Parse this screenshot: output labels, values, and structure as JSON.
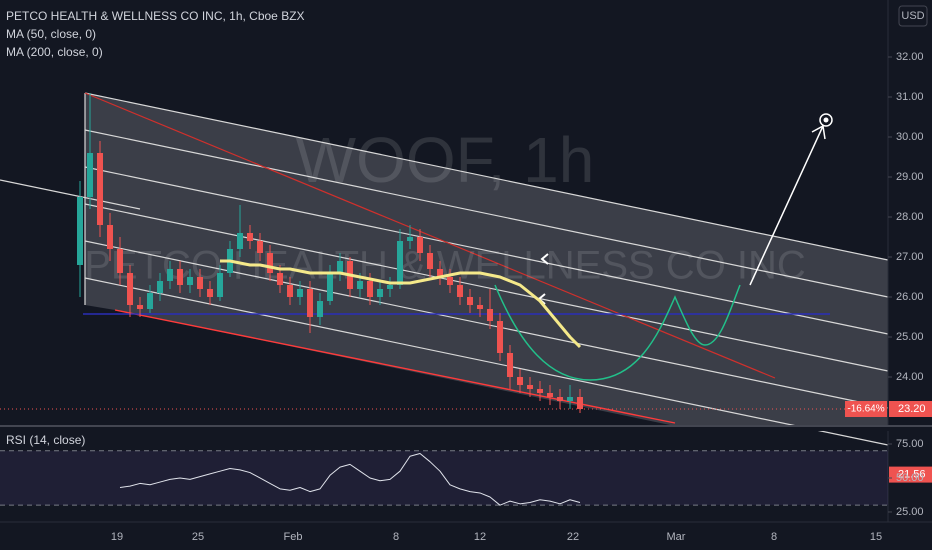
{
  "chart_data": {
    "type": "candlestick",
    "title": "PETCO HEALTH & WELLNESS CO INC, 1h, Cboe BZX",
    "indicators": [
      "MA (50, close, 0)",
      "MA (200, close, 0)"
    ],
    "currency": "USD",
    "watermark": "WOOF, 1h",
    "watermark_subtitle": "PETCO HEALTH & WELLNESS CO INC",
    "up_color": "#26a69a",
    "down_color": "#ef5350",
    "candles": {
      "open": [
        26.8,
        28.5,
        29.6,
        27.8,
        27.2,
        26.6,
        25.8,
        25.7,
        26.1,
        26.4,
        26.7,
        26.3,
        26.5,
        26.2,
        26.0,
        26.6,
        27.2,
        27.6,
        27.4,
        27.1,
        26.6,
        26.3,
        26.0,
        26.2,
        25.5,
        25.9,
        26.6,
        26.9,
        26.2,
        26.4,
        26.0,
        26.2,
        26.3,
        27.4,
        27.5,
        27.1,
        26.7,
        26.5,
        26.3,
        26.0,
        25.8,
        25.7,
        25.4,
        24.6,
        24.0,
        23.8,
        23.7,
        23.6,
        23.5,
        23.4,
        23.5
      ],
      "high": [
        28.9,
        31.1,
        29.9,
        28.1,
        27.5,
        26.8,
        26.0,
        26.3,
        26.6,
        26.9,
        26.9,
        26.7,
        26.7,
        26.4,
        26.8,
        27.4,
        28.3,
        27.8,
        27.6,
        27.3,
        26.8,
        26.5,
        26.4,
        26.4,
        26.1,
        26.8,
        27.1,
        27.0,
        26.6,
        26.6,
        26.4,
        26.5,
        27.7,
        27.8,
        27.7,
        27.3,
        26.9,
        26.7,
        26.5,
        26.2,
        26.0,
        26.2,
        25.6,
        24.8,
        24.2,
        24.0,
        23.9,
        23.8,
        23.7,
        23.8,
        23.7
      ],
      "low": [
        26.0,
        28.2,
        27.5,
        26.9,
        26.3,
        25.5,
        25.5,
        25.6,
        25.9,
        26.2,
        26.1,
        26.1,
        26.0,
        25.8,
        25.9,
        26.5,
        27.0,
        27.2,
        26.9,
        26.4,
        26.1,
        25.8,
        25.8,
        25.1,
        25.3,
        25.8,
        26.4,
        26.0,
        26.0,
        25.8,
        25.8,
        26.0,
        26.2,
        27.2,
        26.9,
        26.5,
        26.3,
        26.1,
        25.8,
        25.6,
        25.5,
        25.2,
        24.4,
        23.7,
        23.6,
        23.5,
        23.4,
        23.3,
        23.2,
        23.2,
        23.1
      ],
      "close": [
        28.5,
        29.6,
        27.8,
        27.2,
        26.6,
        25.8,
        25.7,
        26.1,
        26.4,
        26.7,
        26.3,
        26.5,
        26.2,
        26.0,
        26.6,
        27.2,
        27.6,
        27.4,
        27.1,
        26.6,
        26.3,
        26.0,
        26.2,
        25.5,
        25.9,
        26.6,
        26.9,
        26.2,
        26.4,
        26.0,
        26.2,
        26.3,
        27.4,
        27.5,
        27.1,
        26.7,
        26.5,
        26.3,
        26.0,
        25.8,
        25.7,
        25.4,
        24.6,
        24.0,
        23.8,
        23.7,
        23.6,
        23.5,
        23.4,
        23.5,
        23.2
      ]
    },
    "series": [
      {
        "name": "MA (50, close, 0)",
        "color": "#f5e98a",
        "values": [
          null,
          null,
          null,
          null,
          null,
          null,
          null,
          null,
          null,
          null,
          null,
          null,
          null,
          null,
          26.9,
          26.9,
          26.85,
          26.8,
          26.8,
          26.75,
          26.7,
          26.7,
          26.65,
          26.6,
          26.6,
          26.6,
          26.6,
          26.55,
          26.5,
          26.45,
          26.4,
          26.35,
          26.35,
          26.35,
          26.4,
          26.45,
          26.5,
          26.55,
          26.6,
          26.6,
          26.6,
          26.55,
          26.5,
          26.4,
          26.3,
          26.1,
          25.9,
          25.6,
          25.3,
          25.0,
          24.75
        ]
      }
    ],
    "xticks": [
      "19",
      "25",
      "Feb",
      "8",
      "12",
      "22",
      "Mar",
      "8",
      "15"
    ],
    "ylim": [
      22.8,
      33.425
    ],
    "yticks": [
      {
        "value": 24,
        "label": "24.00"
      },
      {
        "value": 25,
        "label": "25.00"
      },
      {
        "value": 26,
        "label": "26.00"
      },
      {
        "value": 27,
        "label": "27.00"
      },
      {
        "value": 28,
        "label": "28.00"
      },
      {
        "value": 29,
        "label": "29.00"
      },
      {
        "value": 30,
        "label": "30.00"
      },
      {
        "value": 31,
        "label": "31.00"
      },
      {
        "value": 32,
        "label": "32.00"
      }
    ],
    "last_price": {
      "value": 23.2,
      "label": "23.20"
    },
    "change_label": "-16.64%",
    "channel_low": {
      "value": 21.56,
      "label": "21.56"
    },
    "rsi": {
      "title": "RSI (14, close)",
      "color": "#e0e3eb",
      "values": [
        null,
        null,
        null,
        null,
        43,
        44,
        46,
        45,
        47,
        49,
        50,
        49,
        51,
        53,
        55,
        57,
        56,
        54,
        50,
        46,
        42,
        41,
        43,
        40,
        42,
        52,
        58,
        60,
        55,
        50,
        48,
        49,
        55,
        66,
        68,
        62,
        55,
        45,
        42,
        40,
        39,
        36,
        30,
        33,
        31,
        32,
        34,
        33,
        31,
        34,
        32
      ],
      "bands": [
        70,
        30
      ],
      "ylim": [
        19.1,
        85.3
      ],
      "yticks": [
        {
          "value": 75,
          "label": "75.00"
        },
        {
          "value": 50,
          "label": "50.00"
        },
        {
          "value": 25,
          "label": "25.00"
        }
      ]
    }
  }
}
